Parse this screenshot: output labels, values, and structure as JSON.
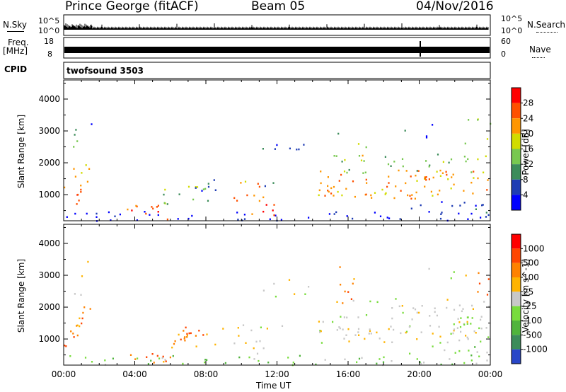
{
  "header": {
    "station": "Prince George (fitACF)",
    "beam": "Beam 05",
    "date": "04/Nov/2016"
  },
  "side_labels": {
    "nsky": "N.Sky",
    "nsky_hi": "10^5",
    "nsky_lo": "10^0",
    "nsearch": "N.Search",
    "nsearch_hi": "10^5",
    "nsearch_lo": "10^0",
    "freq_a": "Freq.",
    "freq_b": "[MHz]",
    "freq_hi": "18",
    "freq_lo": "8",
    "nave": "Nave",
    "nave_hi": "60",
    "nave_lo": "0",
    "cpid": "CPID",
    "cpid_value": "twofsound 3503"
  },
  "chart_data": [
    {
      "type": "heatmap",
      "id": "power",
      "ylabel": "Slant Range [km]",
      "y_ticks": [
        1000,
        2000,
        3000,
        4000
      ],
      "ylim": [
        180,
        4600
      ],
      "x_ticks": [
        "00:00",
        "04:00",
        "08:00",
        "12:00",
        "16:00",
        "20:00",
        "00:00"
      ],
      "xlim_hours": [
        0,
        24
      ],
      "colorbar": {
        "label": "Power [dB]",
        "ticks": [
          "28",
          "24",
          "20",
          "16",
          "12",
          "8",
          "4"
        ],
        "colors": [
          "#0000ff",
          "#1e3cb4",
          "#3c8c5a",
          "#78c850",
          "#d2dc00",
          "#ff9600",
          "#ff5000",
          "#ff0000"
        ]
      }
    },
    {
      "type": "heatmap",
      "id": "velocity",
      "ylabel": "Slant Range [km]",
      "y_ticks": [
        1000,
        2000,
        3000,
        4000
      ],
      "ylim": [
        180,
        4600
      ],
      "x_ticks": [
        "00:00",
        "04:00",
        "08:00",
        "12:00",
        "16:00",
        "20:00",
        "00:00"
      ],
      "xlabel": "Time UT",
      "xlim_hours": [
        0,
        24
      ],
      "colorbar": {
        "label": "Velocity [m s^-1]",
        "ticks": [
          "1000",
          "500",
          "100",
          "25",
          "-25",
          "-100",
          "-500",
          "-1000"
        ],
        "colors": [
          "#2846c8",
          "#3c8c5a",
          "#50b43c",
          "#78dc3c",
          "#c8c8c8",
          "#ffb400",
          "#ff8200",
          "#ff4600",
          "#ff0000"
        ]
      }
    }
  ]
}
